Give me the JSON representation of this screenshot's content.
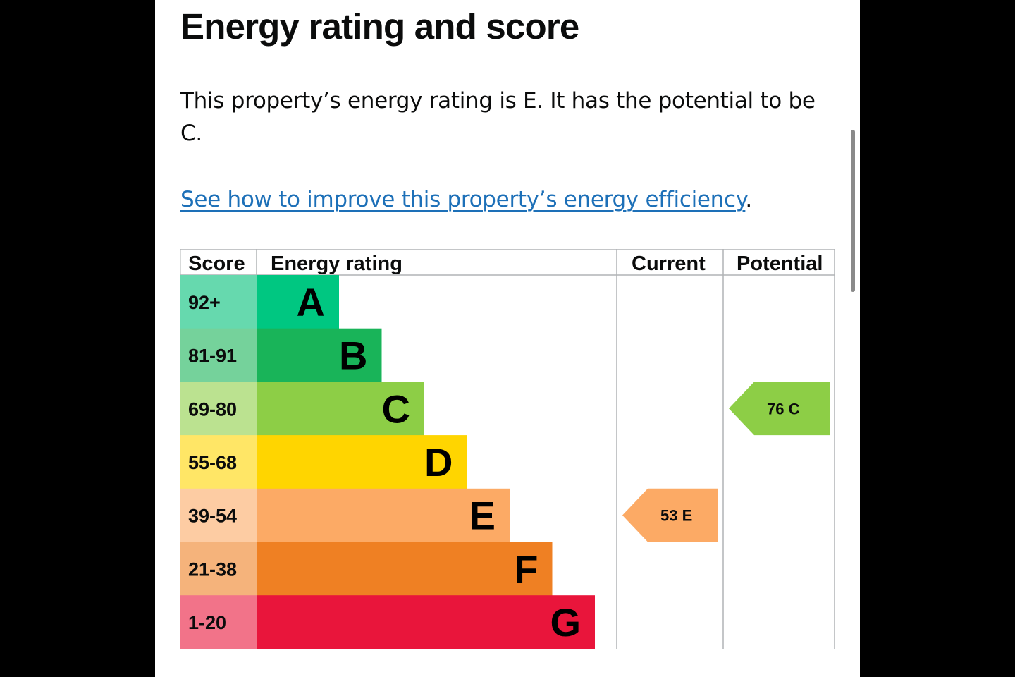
{
  "page": {
    "heading": "Energy rating and score",
    "summary": "This property’s energy rating is E. It has the potential to be C.",
    "improve_link": "See how to improve this property’s energy efficiency",
    "improve_suffix": "."
  },
  "chart_data": {
    "type": "table",
    "columns": [
      "Score",
      "Energy rating",
      "Current",
      "Potential"
    ],
    "bands": [
      {
        "letter": "A",
        "range": "92+",
        "color": "#00c781",
        "score_color": "#66d9ae"
      },
      {
        "letter": "B",
        "range": "81-91",
        "color": "#19b459",
        "score_color": "#75d29b"
      },
      {
        "letter": "C",
        "range": "69-80",
        "color": "#8dce46",
        "score_color": "#bbe290"
      },
      {
        "letter": "D",
        "range": "55-68",
        "color": "#ffd500",
        "score_color": "#ffe666"
      },
      {
        "letter": "E",
        "range": "39-54",
        "color": "#fcaa65",
        "score_color": "#fdcca3"
      },
      {
        "letter": "F",
        "range": "21-38",
        "color": "#ef8023",
        "score_color": "#f5b37b"
      },
      {
        "letter": "G",
        "range": "1-20",
        "color": "#e9153b",
        "score_color": "#f27389"
      }
    ],
    "current": {
      "score": "53",
      "letter": "E",
      "band": "E",
      "color": "#fcaa65"
    },
    "potential": {
      "score": "76",
      "letter": "C",
      "band": "C",
      "color": "#8dce46"
    }
  }
}
